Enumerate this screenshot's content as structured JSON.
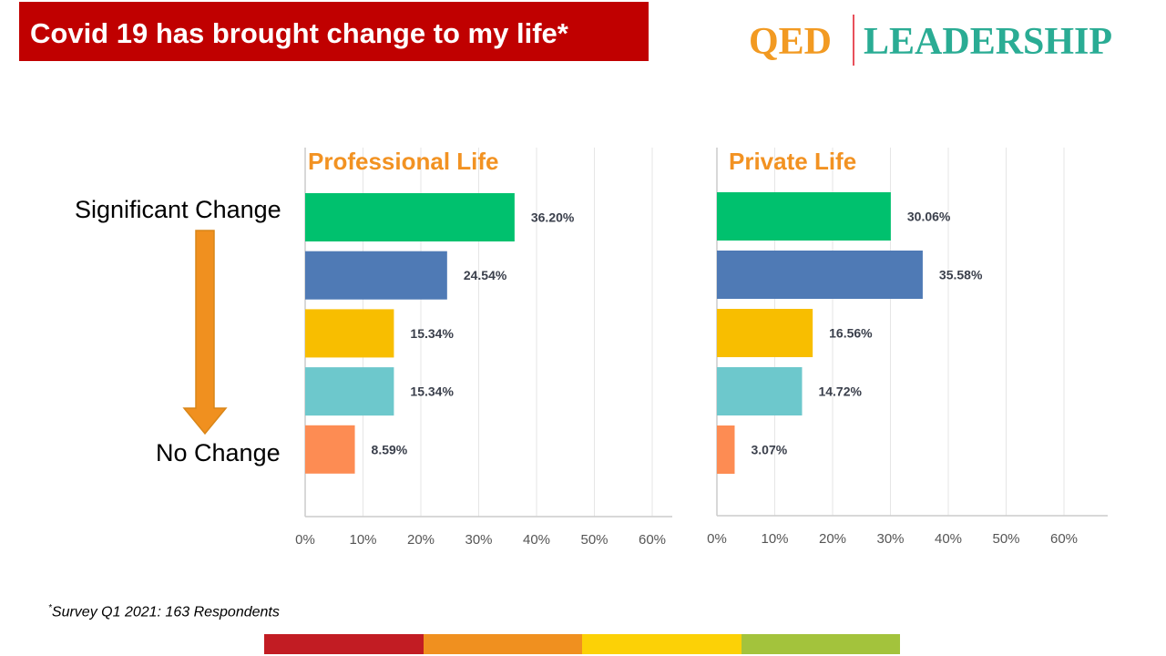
{
  "header": {
    "title": "Covid 19 has brought change to my life*",
    "logo_left": "QED",
    "logo_right": "LEADERSHIP"
  },
  "scale": {
    "top_label": "Significant Change",
    "bottom_label": "No Change"
  },
  "footnote": {
    "marker": "*",
    "text": "Survey Q1 2021: 163 Respondents"
  },
  "colors": {
    "title_bg": "#c00000",
    "chart_title": "#f29222",
    "bars": [
      "#00c16e",
      "#4f7ab5",
      "#f8be00",
      "#6dc8cc",
      "#fd8c53"
    ],
    "stripe": [
      "#c21c23",
      "#f0901f",
      "#fcd106",
      "#a3c33c"
    ]
  },
  "chart_data": [
    {
      "type": "bar",
      "orientation": "horizontal",
      "title": "Professional Life",
      "values": [
        36.2,
        24.54,
        15.34,
        15.34,
        8.59
      ],
      "value_labels": [
        "36.20%",
        "24.54%",
        "15.34%",
        "15.34%",
        "8.59%"
      ],
      "xlim": [
        0,
        60
      ],
      "xticks": [
        "0%",
        "10%",
        "20%",
        "30%",
        "40%",
        "50%",
        "60%"
      ],
      "grid": true
    },
    {
      "type": "bar",
      "orientation": "horizontal",
      "title": "Private Life",
      "values": [
        30.06,
        35.58,
        16.56,
        14.72,
        3.07
      ],
      "value_labels": [
        "30.06%",
        "35.58%",
        "16.56%",
        "14.72%",
        "3.07%"
      ],
      "xlim": [
        0,
        60
      ],
      "xticks": [
        "0%",
        "10%",
        "20%",
        "30%",
        "40%",
        "50%",
        "60%"
      ],
      "grid": true
    }
  ]
}
